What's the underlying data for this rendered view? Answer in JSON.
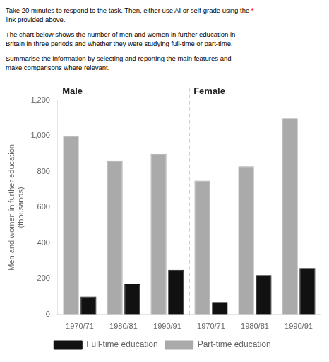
{
  "chart_data": {
    "type": "bar",
    "annotations": [
      [
        [
          {
            "text": "Take 20 minutes to respond to the task. Then, either use AI or self-grade using the "
          },
          {
            "text": "*",
            "color": "red"
          }
        ],
        "link provided above."
      ],
      [
        "The chart below shows the number of men and women in further education in",
        "Britain in three periods and whether they were studying full-time or part-time."
      ],
      [
        "Summarise the information by selecting and reporting the main features and",
        "make comparisons where relevant."
      ]
    ],
    "groups": [
      "Male",
      "Female"
    ],
    "y_label": [
      "Men and women in further education",
      "(thousands)"
    ],
    "categories": [
      "1970/71",
      "1980/81",
      "1990/91",
      "1970/71",
      "1980/81",
      "1990/91"
    ],
    "series": [
      {
        "name": "Part-time education",
        "color": "#aaaaaa",
        "values": [
          1000,
          860,
          900,
          750,
          830,
          1100
        ]
      },
      {
        "name": "Full-time education",
        "color": "#111111",
        "values": [
          100,
          170,
          250,
          70,
          220,
          260
        ]
      }
    ],
    "ylim": [
      0,
      1200
    ],
    "yticks": [
      0,
      200,
      400,
      600,
      800,
      1000,
      1200
    ],
    "grid": false,
    "legend": "bottom"
  }
}
